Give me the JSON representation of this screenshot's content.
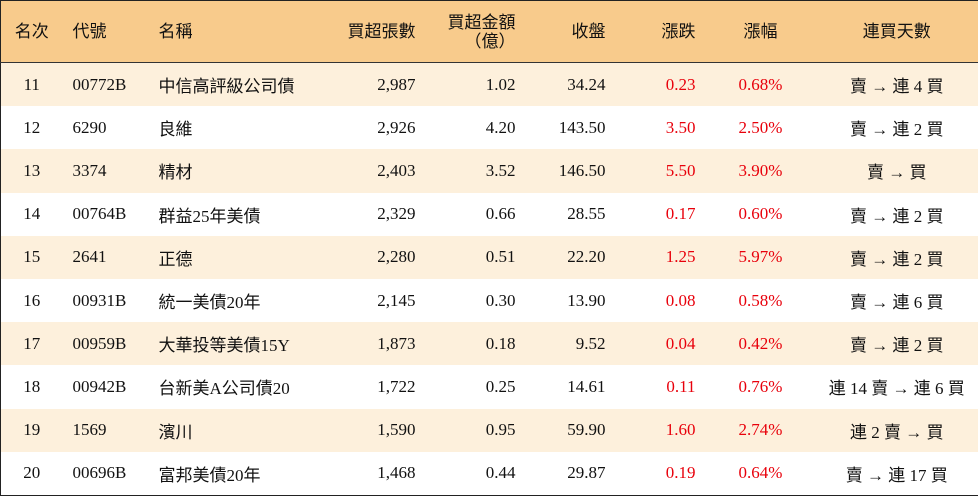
{
  "table": {
    "headers": [
      "名次",
      "代號",
      "名稱",
      "買超張數",
      "買超金額\n（億）",
      "收盤",
      "漲跌",
      "漲幅",
      "連買天數"
    ],
    "rows": [
      [
        "11",
        "00772B",
        "中信高評級公司債",
        "2,987",
        "1.02",
        "34.24",
        "0.23",
        "0.68%",
        "賣 → 連 4 買"
      ],
      [
        "12",
        "6290",
        "良維",
        "2,926",
        "4.20",
        "143.50",
        "3.50",
        "2.50%",
        "賣 → 連 2 買"
      ],
      [
        "13",
        "3374",
        "精材",
        "2,403",
        "3.52",
        "146.50",
        "5.50",
        "3.90%",
        "賣 → 買"
      ],
      [
        "14",
        "00764B",
        "群益25年美債",
        "2,329",
        "0.66",
        "28.55",
        "0.17",
        "0.60%",
        "賣 → 連 2 買"
      ],
      [
        "15",
        "2641",
        "正德",
        "2,280",
        "0.51",
        "22.20",
        "1.25",
        "5.97%",
        "賣 → 連 2 買"
      ],
      [
        "16",
        "00931B",
        "統一美債20年",
        "2,145",
        "0.30",
        "13.90",
        "0.08",
        "0.58%",
        "賣 → 連 6 買"
      ],
      [
        "17",
        "00959B",
        "大華投等美債15Y",
        "1,873",
        "0.18",
        "9.52",
        "0.04",
        "0.42%",
        "賣 → 連 2 買"
      ],
      [
        "18",
        "00942B",
        "台新美A公司債20",
        "1,722",
        "0.25",
        "14.61",
        "0.11",
        "0.76%",
        "連 14 賣 → 連 6 買"
      ],
      [
        "19",
        "1569",
        "濱川",
        "1,590",
        "0.95",
        "59.90",
        "1.60",
        "2.74%",
        "連 2 賣 → 買"
      ],
      [
        "20",
        "00696B",
        "富邦美債20年",
        "1,468",
        "0.44",
        "29.87",
        "0.19",
        "0.64%",
        "賣 → 連 17 買"
      ]
    ]
  }
}
